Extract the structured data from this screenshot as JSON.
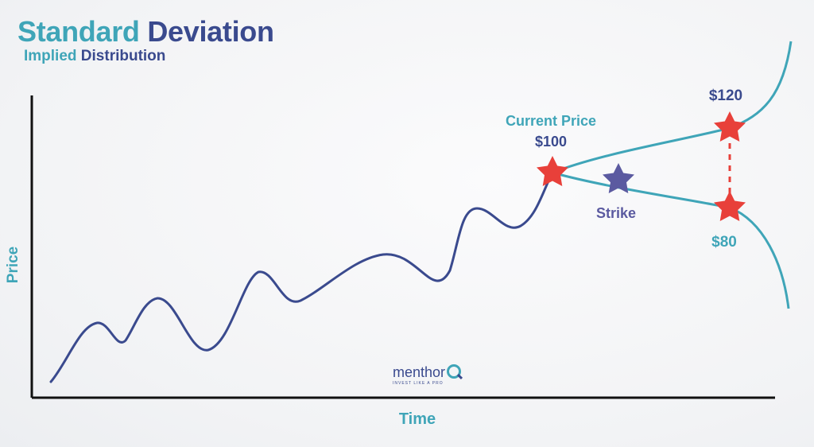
{
  "title": {
    "part1": "Standard",
    "part2": "Deviation"
  },
  "subtitle": {
    "part1": "Implied",
    "part2": "Distribution"
  },
  "axes": {
    "y_label": "Price",
    "x_label": "Time"
  },
  "labels": {
    "current_price_title": "Current Price",
    "current_price_value": "$100",
    "upper_value": "$120",
    "lower_value": "$80",
    "strike": "Strike"
  },
  "brand": {
    "name": "menthor",
    "tagline": "INVEST LIKE A PRO"
  },
  "colors": {
    "teal": "#3fa5b8",
    "navy": "#3a4a8e",
    "marker_red": "#e8403a",
    "strike_purple": "#5b5aa0",
    "axis": "#111111"
  },
  "icons": {
    "price_marker": "red-star-icon",
    "strike_marker": "purple-star-icon",
    "brand_logo": "q-logo-icon"
  }
}
